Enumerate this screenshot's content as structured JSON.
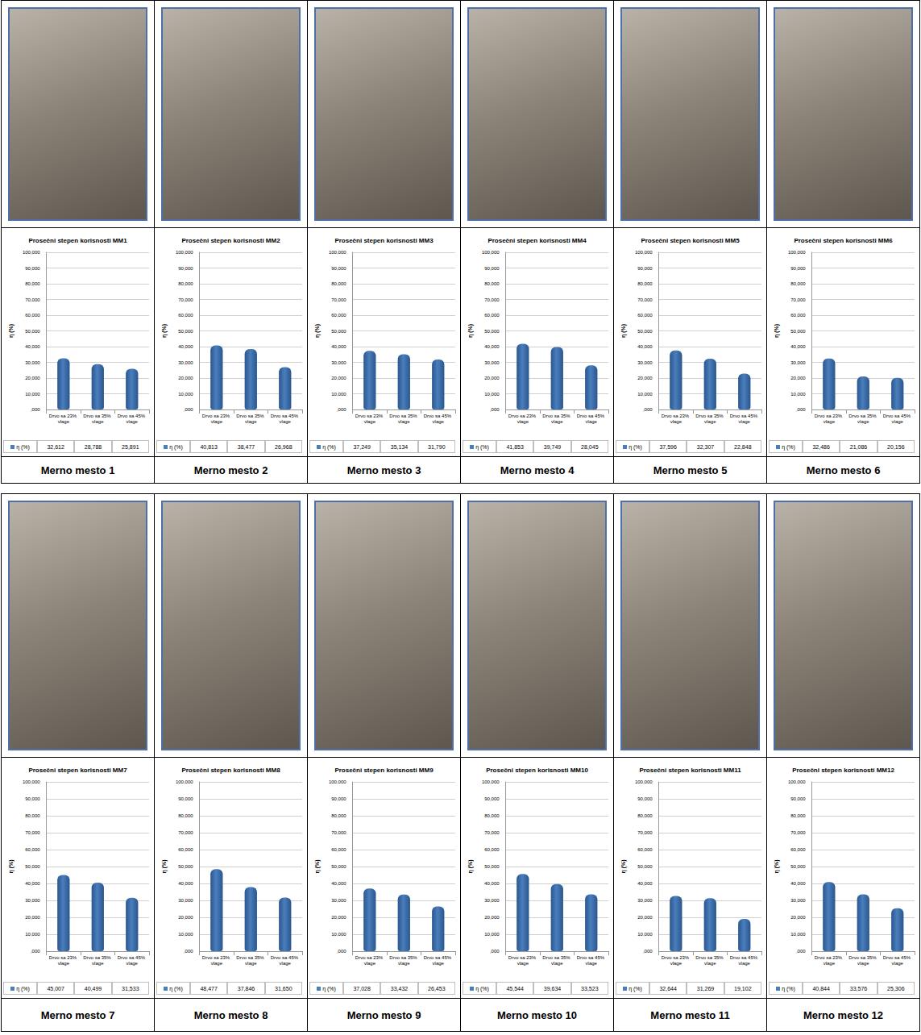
{
  "chart_data": [
    {
      "type": "bar",
      "title": "Prosečni stepen korisnosti MM1",
      "caption": "Merno mesto 1",
      "ylabel": "η (%)",
      "categories": [
        "Drvo sa 23% vlage",
        "Drvo sa 35% vlage",
        "Drvo sa 45% vlage"
      ],
      "series": [
        {
          "name": "η (%)",
          "color": "#4a7ebb",
          "values": [
            32.612,
            28.788,
            25.891
          ],
          "value_labels": [
            "32,612",
            "28,788",
            "25,891"
          ]
        }
      ],
      "ylim": [
        0,
        100
      ],
      "yticks": [
        {
          "value": 0,
          "label": ",000"
        },
        {
          "value": 10,
          "label": "10,000"
        },
        {
          "value": 20,
          "label": "20,000"
        },
        {
          "value": 30,
          "label": "30,000"
        },
        {
          "value": 40,
          "label": "40,000"
        },
        {
          "value": 50,
          "label": "50,000"
        },
        {
          "value": 60,
          "label": "60,000"
        },
        {
          "value": 70,
          "label": "70,000"
        },
        {
          "value": 80,
          "label": "80,000"
        },
        {
          "value": 90,
          "label": "90,000"
        },
        {
          "value": 100,
          "label": "100,000"
        }
      ],
      "grid": true
    },
    {
      "type": "bar",
      "title": "Prosečni stepen korisnosti MM2",
      "caption": "Merno mesto 2",
      "ylabel": "η (%)",
      "categories": [
        "Drvo sa 23% vlage",
        "Drvo sa 35% vlage",
        "Drvo sa 45% vlage"
      ],
      "series": [
        {
          "name": "η (%)",
          "color": "#4a7ebb",
          "values": [
            40.813,
            38.477,
            26.968
          ],
          "value_labels": [
            "40,813",
            "38,477",
            "26,968"
          ]
        }
      ],
      "ylim": [
        0,
        100
      ],
      "yticks": [
        {
          "value": 0,
          "label": ",000"
        },
        {
          "value": 10,
          "label": "10,000"
        },
        {
          "value": 20,
          "label": "20,000"
        },
        {
          "value": 30,
          "label": "30,000"
        },
        {
          "value": 40,
          "label": "40,000"
        },
        {
          "value": 50,
          "label": "50,000"
        },
        {
          "value": 60,
          "label": "60,000"
        },
        {
          "value": 70,
          "label": "70,000"
        },
        {
          "value": 80,
          "label": "80,000"
        },
        {
          "value": 90,
          "label": "90,000"
        },
        {
          "value": 100,
          "label": "100,000"
        }
      ],
      "grid": true
    },
    {
      "type": "bar",
      "title": "Prosečni stepen korisnosti MM3",
      "caption": "Merno mesto 3",
      "ylabel": "η (%)",
      "categories": [
        "Drvo sa 23% vlage",
        "Drvo sa 35% vlage",
        "Drvo sa 45% vlage"
      ],
      "series": [
        {
          "name": "η (%)",
          "color": "#4a7ebb",
          "values": [
            37.249,
            35.134,
            31.79
          ],
          "value_labels": [
            "37,249",
            "35,134",
            "31,790"
          ]
        }
      ],
      "ylim": [
        0,
        100
      ],
      "yticks": [
        {
          "value": 0,
          "label": ",000"
        },
        {
          "value": 10,
          "label": "10,000"
        },
        {
          "value": 20,
          "label": "20,000"
        },
        {
          "value": 30,
          "label": "30,000"
        },
        {
          "value": 40,
          "label": "40,000"
        },
        {
          "value": 50,
          "label": "50,000"
        },
        {
          "value": 60,
          "label": "60,000"
        },
        {
          "value": 70,
          "label": "70,000"
        },
        {
          "value": 80,
          "label": "80,000"
        },
        {
          "value": 90,
          "label": "90,000"
        },
        {
          "value": 100,
          "label": "100,000"
        }
      ],
      "grid": true
    },
    {
      "type": "bar",
      "title": "Prosečni stepen korisnosti MM4",
      "caption": "Merno mesto 4",
      "ylabel": "η (%)",
      "categories": [
        "Drvo sa 23% vlage",
        "Drvo sa 35% vlage",
        "Drvo sa 45% vlage"
      ],
      "series": [
        {
          "name": "η (%)",
          "color": "#4a7ebb",
          "values": [
            41.853,
            39.749,
            28.045
          ],
          "value_labels": [
            "41,853",
            "39,749",
            "28,045"
          ]
        }
      ],
      "ylim": [
        0,
        100
      ],
      "yticks": [
        {
          "value": 0,
          "label": ",000"
        },
        {
          "value": 10,
          "label": "10,000"
        },
        {
          "value": 20,
          "label": "20,000"
        },
        {
          "value": 30,
          "label": "30,000"
        },
        {
          "value": 40,
          "label": "40,000"
        },
        {
          "value": 50,
          "label": "50,000"
        },
        {
          "value": 60,
          "label": "60,000"
        },
        {
          "value": 70,
          "label": "70,000"
        },
        {
          "value": 80,
          "label": "80,000"
        },
        {
          "value": 90,
          "label": "90,000"
        },
        {
          "value": 100,
          "label": "100,000"
        }
      ],
      "grid": true
    },
    {
      "type": "bar",
      "title": "Prosečni stepen korisnosti MM5",
      "caption": "Merno mesto 5",
      "ylabel": "η (%)",
      "categories": [
        "Drvo sa 23% vlage",
        "Drvo sa 35% vlage",
        "Drvo sa 45% vlage"
      ],
      "series": [
        {
          "name": "η (%)",
          "color": "#4a7ebb",
          "values": [
            37.596,
            32.307,
            22.848
          ],
          "value_labels": [
            "37,596",
            "32,307",
            "22,848"
          ]
        }
      ],
      "ylim": [
        0,
        100
      ],
      "yticks": [
        {
          "value": 0,
          "label": ",000"
        },
        {
          "value": 10,
          "label": "10,000"
        },
        {
          "value": 20,
          "label": "20,000"
        },
        {
          "value": 30,
          "label": "30,000"
        },
        {
          "value": 40,
          "label": "40,000"
        },
        {
          "value": 50,
          "label": "50,000"
        },
        {
          "value": 60,
          "label": "60,000"
        },
        {
          "value": 70,
          "label": "70,000"
        },
        {
          "value": 80,
          "label": "80,000"
        },
        {
          "value": 90,
          "label": "90,000"
        },
        {
          "value": 100,
          "label": "100,000"
        }
      ],
      "grid": true
    },
    {
      "type": "bar",
      "title": "Prosečni stepen korisnosti MM6",
      "caption": "Merno mesto 6",
      "ylabel": "η (%)",
      "categories": [
        "Drvo sa 23% vlage",
        "Drvo sa 35% vlage",
        "Drvo sa 45% vlage"
      ],
      "series": [
        {
          "name": "η (%)",
          "color": "#4a7ebb",
          "values": [
            32.486,
            21.086,
            20.156
          ],
          "value_labels": [
            "32,486",
            "21,086",
            "20,156"
          ]
        }
      ],
      "ylim": [
        0,
        100
      ],
      "yticks": [
        {
          "value": 0,
          "label": ",000"
        },
        {
          "value": 10,
          "label": "10,000"
        },
        {
          "value": 20,
          "label": "20,000"
        },
        {
          "value": 30,
          "label": "30,000"
        },
        {
          "value": 40,
          "label": "40,000"
        },
        {
          "value": 50,
          "label": "50,000"
        },
        {
          "value": 60,
          "label": "60,000"
        },
        {
          "value": 70,
          "label": "70,000"
        },
        {
          "value": 80,
          "label": "80,000"
        },
        {
          "value": 90,
          "label": "90,000"
        },
        {
          "value": 100,
          "label": "100,000"
        }
      ],
      "grid": true
    },
    {
      "type": "bar",
      "title": "Prosečni stepen korisnosti MM7",
      "caption": "Merno mesto 7",
      "ylabel": "η (%)",
      "categories": [
        "Drvo sa 23% vlage",
        "Drvo sa 35% vlage",
        "Drvo sa 45% vlage"
      ],
      "series": [
        {
          "name": "η (%)",
          "color": "#4a7ebb",
          "values": [
            45.007,
            40.499,
            31.533
          ],
          "value_labels": [
            "45,007",
            "40,499",
            "31,533"
          ]
        }
      ],
      "ylim": [
        0,
        100
      ],
      "yticks": [
        {
          "value": 0,
          "label": ",000"
        },
        {
          "value": 10,
          "label": "10,000"
        },
        {
          "value": 20,
          "label": "20,000"
        },
        {
          "value": 30,
          "label": "30,000"
        },
        {
          "value": 40,
          "label": "40,000"
        },
        {
          "value": 50,
          "label": "50,000"
        },
        {
          "value": 60,
          "label": "60,000"
        },
        {
          "value": 70,
          "label": "70,000"
        },
        {
          "value": 80,
          "label": "80,000"
        },
        {
          "value": 90,
          "label": "90,000"
        },
        {
          "value": 100,
          "label": "100,000"
        }
      ],
      "grid": true
    },
    {
      "type": "bar",
      "title": "Prosečni stepen korisnosti MM8",
      "caption": "Merno mesto 8",
      "ylabel": "η (%)",
      "categories": [
        "Drvo sa 23% vlage",
        "Drvo sa 35% vlage",
        "Drvo sa 45% vlage"
      ],
      "series": [
        {
          "name": "η (%)",
          "color": "#4a7ebb",
          "values": [
            48.477,
            37.846,
            31.65
          ],
          "value_labels": [
            "48,477",
            "37,846",
            "31,650"
          ]
        }
      ],
      "ylim": [
        0,
        100
      ],
      "yticks": [
        {
          "value": 0,
          "label": ",000"
        },
        {
          "value": 10,
          "label": "10,000"
        },
        {
          "value": 20,
          "label": "20,000"
        },
        {
          "value": 30,
          "label": "30,000"
        },
        {
          "value": 40,
          "label": "40,000"
        },
        {
          "value": 50,
          "label": "50,000"
        },
        {
          "value": 60,
          "label": "60,000"
        },
        {
          "value": 70,
          "label": "70,000"
        },
        {
          "value": 80,
          "label": "80,000"
        },
        {
          "value": 90,
          "label": "90,000"
        },
        {
          "value": 100,
          "label": "100,000"
        }
      ],
      "grid": true
    },
    {
      "type": "bar",
      "title": "Prosečni stepen korisnosti MM9",
      "caption": "Merno mesto 9",
      "ylabel": "η (%)",
      "categories": [
        "Drvo sa 23% vlage",
        "Drvo sa 35% vlage",
        "Drvo sa 45% vlage"
      ],
      "series": [
        {
          "name": "η (%)",
          "color": "#4a7ebb",
          "values": [
            37.028,
            33.432,
            26.453
          ],
          "value_labels": [
            "37,028",
            "33,432",
            "26,453"
          ]
        }
      ],
      "ylim": [
        0,
        100
      ],
      "yticks": [
        {
          "value": 0,
          "label": ",000"
        },
        {
          "value": 10,
          "label": "10,000"
        },
        {
          "value": 20,
          "label": "20,000"
        },
        {
          "value": 30,
          "label": "30,000"
        },
        {
          "value": 40,
          "label": "40,000"
        },
        {
          "value": 50,
          "label": "50,000"
        },
        {
          "value": 60,
          "label": "60,000"
        },
        {
          "value": 70,
          "label": "70,000"
        },
        {
          "value": 80,
          "label": "80,000"
        },
        {
          "value": 90,
          "label": "90,000"
        },
        {
          "value": 100,
          "label": "100,000"
        }
      ],
      "grid": true
    },
    {
      "type": "bar",
      "title": "Prosečni stepen korisnosti MM10",
      "caption": "Merno mesto 10",
      "ylabel": "η (%)",
      "categories": [
        "Drvo sa 23% vlage",
        "Drvo sa 35% vlage",
        "Drvo sa 45% vlage"
      ],
      "series": [
        {
          "name": "η (%)",
          "color": "#4a7ebb",
          "values": [
            45.544,
            39.634,
            33.523
          ],
          "value_labels": [
            "45,544",
            "39,634",
            "33,523"
          ]
        }
      ],
      "ylim": [
        0,
        100
      ],
      "yticks": [
        {
          "value": 0,
          "label": ",000"
        },
        {
          "value": 10,
          "label": "10,000"
        },
        {
          "value": 20,
          "label": "20,000"
        },
        {
          "value": 30,
          "label": "30,000"
        },
        {
          "value": 40,
          "label": "40,000"
        },
        {
          "value": 50,
          "label": "50,000"
        },
        {
          "value": 60,
          "label": "60,000"
        },
        {
          "value": 70,
          "label": "70,000"
        },
        {
          "value": 80,
          "label": "80,000"
        },
        {
          "value": 90,
          "label": "90,000"
        },
        {
          "value": 100,
          "label": "100,000"
        }
      ],
      "grid": true
    },
    {
      "type": "bar",
      "title": "Prosečni stepen korisnosti MM11",
      "caption": "Merno mesto 11",
      "ylabel": "η (%)",
      "categories": [
        "Drvo sa 23% vlage",
        "Drvo sa 35% vlage",
        "Drvo sa 45% vlage"
      ],
      "series": [
        {
          "name": "η (%)",
          "color": "#4a7ebb",
          "values": [
            32.644,
            31.269,
            19.102
          ],
          "value_labels": [
            "32,644",
            "31,269",
            "19,102"
          ]
        }
      ],
      "ylim": [
        0,
        100
      ],
      "yticks": [
        {
          "value": 0,
          "label": ",000"
        },
        {
          "value": 10,
          "label": "10,000"
        },
        {
          "value": 20,
          "label": "20,000"
        },
        {
          "value": 30,
          "label": "30,000"
        },
        {
          "value": 40,
          "label": "40,000"
        },
        {
          "value": 50,
          "label": "50,000"
        },
        {
          "value": 60,
          "label": "60,000"
        },
        {
          "value": 70,
          "label": "70,000"
        },
        {
          "value": 80,
          "label": "80,000"
        },
        {
          "value": 90,
          "label": "90,000"
        },
        {
          "value": 100,
          "label": "100,000"
        }
      ],
      "grid": true
    },
    {
      "type": "bar",
      "title": "Prosečni stepen korisnosti MM12",
      "caption": "Merno mesto 12",
      "ylabel": "η (%)",
      "categories": [
        "Drvo sa 23% vlage",
        "Drvo sa 35% vlage",
        "Drvo sa 45% vlage"
      ],
      "series": [
        {
          "name": "η (%)",
          "color": "#4a7ebb",
          "values": [
            40.844,
            33.576,
            25.306
          ],
          "value_labels": [
            "40,844",
            "33,576",
            "25,306"
          ]
        }
      ],
      "ylim": [
        0,
        100
      ],
      "yticks": [
        {
          "value": 0,
          "label": ",000"
        },
        {
          "value": 10,
          "label": "10,000"
        },
        {
          "value": 20,
          "label": "20,000"
        },
        {
          "value": 30,
          "label": "30,000"
        },
        {
          "value": 40,
          "label": "40,000"
        },
        {
          "value": 50,
          "label": "50,000"
        },
        {
          "value": 60,
          "label": "60,000"
        },
        {
          "value": 70,
          "label": "70,000"
        },
        {
          "value": 80,
          "label": "80,000"
        },
        {
          "value": 90,
          "label": "90,000"
        },
        {
          "value": 100,
          "label": "100,000"
        }
      ],
      "grid": true
    }
  ]
}
